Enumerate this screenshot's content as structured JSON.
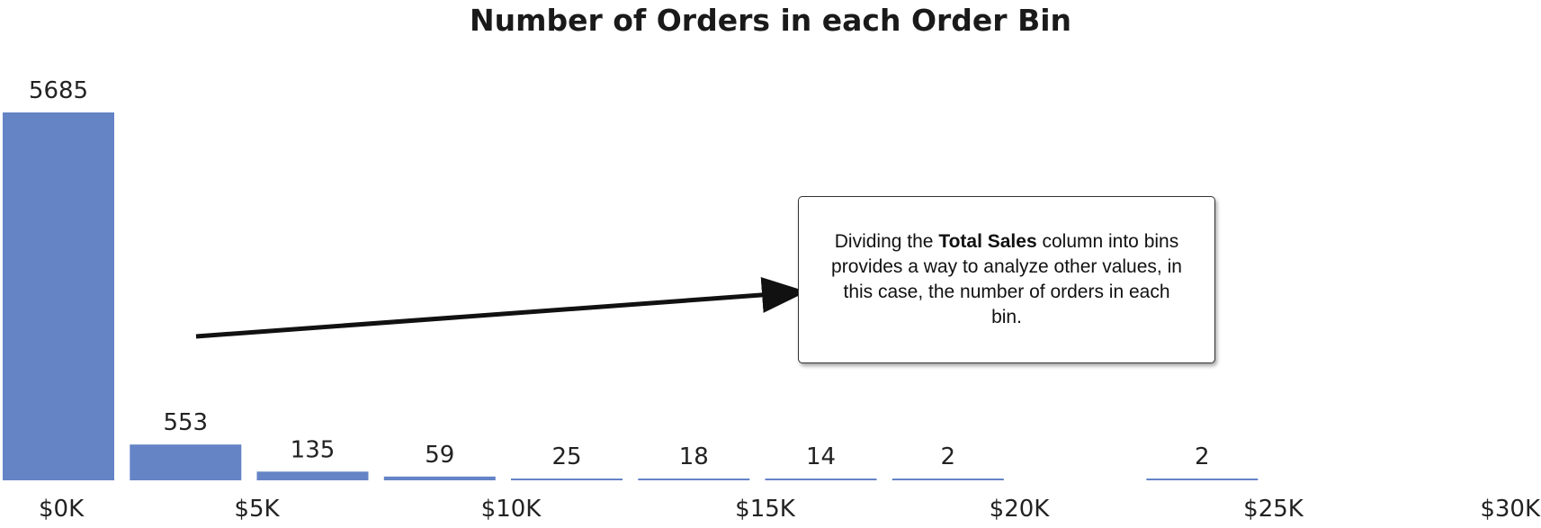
{
  "chart_data": {
    "type": "bar",
    "title": "Number of Orders in each Order Bin",
    "x_ticks": [
      "$0K",
      "$5K",
      "$10K",
      "$15K",
      "$20K",
      "$25K",
      "$30K"
    ],
    "x_tick_values": [
      0,
      5000,
      10000,
      15000,
      20000,
      25000,
      30000
    ],
    "xlim": [
      0,
      30000
    ],
    "bin_width": 2500,
    "bins": [
      {
        "start": 0,
        "value": 5685
      },
      {
        "start": 2500,
        "value": 553
      },
      {
        "start": 5000,
        "value": 135
      },
      {
        "start": 7500,
        "value": 59
      },
      {
        "start": 10000,
        "value": 25
      },
      {
        "start": 12500,
        "value": 18
      },
      {
        "start": 15000,
        "value": 14
      },
      {
        "start": 17500,
        "value": 2
      },
      {
        "start": 22500,
        "value": 2
      }
    ],
    "ylim": [
      0,
      5685
    ],
    "bar_color": "#6584C6",
    "grid": false,
    "annotation": {
      "text_before": "Dividing the ",
      "text_bold": "Total Sales",
      "text_after": " column into bins provides a way to analyze other values, in this case, the number of orders in each bin."
    }
  }
}
